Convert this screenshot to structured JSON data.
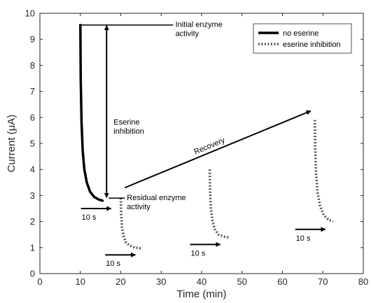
{
  "chart_data": {
    "type": "line",
    "xlabel": "Time (min)",
    "ylabel": "Current (μA)",
    "xlim": [
      0,
      80
    ],
    "ylim": [
      0,
      10
    ],
    "xticks": [
      "0",
      "10",
      "20",
      "30",
      "40",
      "50",
      "60",
      "70",
      "80"
    ],
    "yticks": [
      "0",
      "1",
      "2",
      "3",
      "4",
      "5",
      "6",
      "7",
      "8",
      "9",
      "10"
    ],
    "grid": false,
    "legend_position": "top-right",
    "series": [
      {
        "name": "no eserine",
        "style": "solid",
        "color": "#000000",
        "points": [
          [
            10,
            9.55
          ],
          [
            10.1,
            7.5
          ],
          [
            10.3,
            5.8
          ],
          [
            10.6,
            4.7
          ],
          [
            11,
            4.0
          ],
          [
            11.6,
            3.5
          ],
          [
            12.4,
            3.15
          ],
          [
            13.4,
            2.95
          ],
          [
            14.5,
            2.85
          ],
          [
            15.5,
            2.8
          ]
        ]
      },
      {
        "name": "eserine inhibition",
        "style": "dotted",
        "color": "#555555",
        "segments": [
          [
            [
              20,
              2.9
            ],
            [
              20.1,
              2.3
            ],
            [
              20.3,
              1.8
            ],
            [
              20.7,
              1.45
            ],
            [
              21.3,
              1.2
            ],
            [
              22.2,
              1.08
            ],
            [
              23.5,
              1.0
            ],
            [
              25,
              0.97
            ]
          ],
          [
            [
              42,
              4.0
            ],
            [
              42.1,
              3.2
            ],
            [
              42.3,
              2.5
            ],
            [
              42.7,
              2.0
            ],
            [
              43.3,
              1.7
            ],
            [
              44.2,
              1.5
            ],
            [
              45.5,
              1.42
            ],
            [
              47,
              1.38
            ]
          ],
          [
            [
              68,
              5.9
            ],
            [
              68.1,
              4.8
            ],
            [
              68.3,
              3.9
            ],
            [
              68.7,
              3.1
            ],
            [
              69.3,
              2.6
            ],
            [
              70.2,
              2.25
            ],
            [
              71.3,
              2.08
            ],
            [
              72.5,
              2.0
            ]
          ]
        ]
      }
    ],
    "annotations": {
      "initial_enzyme": {
        "lines": [
          "Initial enzyme",
          "activity"
        ],
        "level": 9.55,
        "from_x": 10,
        "to_x": 33
      },
      "residual_enzyme": {
        "lines": [
          "Residual enzyme",
          "activity"
        ],
        "level": 2.9,
        "from_x": 17,
        "to_x": 21
      },
      "eserine_inhibition": {
        "lines": [
          "Eserine",
          "inhibition"
        ],
        "arrow_x": 16.5,
        "from_y": 9.55,
        "to_y": 2.9
      },
      "recovery": {
        "label": "Recovery",
        "from": [
          21,
          3.3
        ],
        "to": [
          67,
          6.25
        ]
      },
      "time_scale_arrows": [
        {
          "label": "10 s",
          "x": 15,
          "y": 2.5,
          "length_x": 4
        },
        {
          "label": "10 s",
          "x": 21,
          "y": 0.72,
          "length_x": 4
        },
        {
          "label": "10 s",
          "x": 42,
          "y": 1.12,
          "length_x": 4
        },
        {
          "label": "10 s",
          "x": 68,
          "y": 1.7,
          "length_x": 4
        }
      ]
    }
  }
}
